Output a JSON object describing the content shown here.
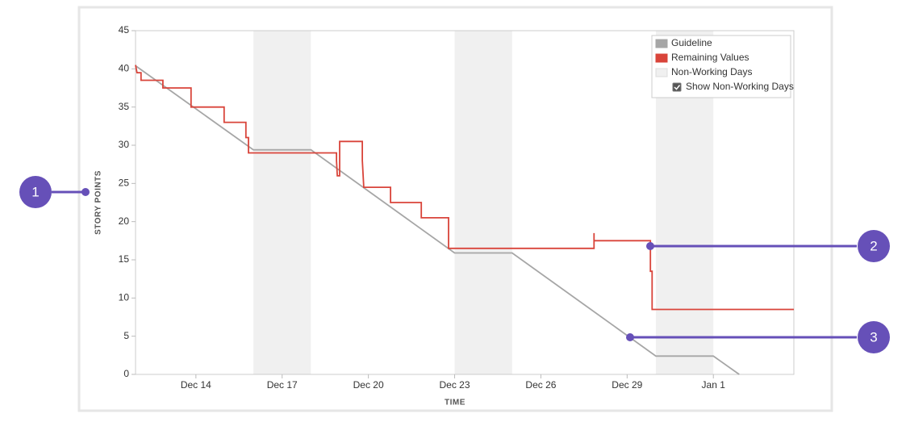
{
  "chart_data": {
    "type": "line",
    "x_label": "TIME",
    "y_label": "STORY POINTS",
    "xlim": [
      11.9,
      34.8
    ],
    "xticks": [
      {
        "value": 14,
        "label": "Dec 14"
      },
      {
        "value": 17,
        "label": "Dec 17"
      },
      {
        "value": 20,
        "label": "Dec 20"
      },
      {
        "value": 23,
        "label": "Dec 23"
      },
      {
        "value": 26,
        "label": "Dec 26"
      },
      {
        "value": 29,
        "label": "Dec 29"
      },
      {
        "value": 32,
        "label": "Jan 1"
      }
    ],
    "ylim": [
      0,
      45
    ],
    "yticks": [
      0,
      5,
      10,
      15,
      20,
      25,
      30,
      35,
      40,
      45
    ],
    "legend": "top-right",
    "shaded_regions": {
      "name": "Non-Working Days",
      "color": "#f0f0f0",
      "ranges": [
        [
          16,
          18
        ],
        [
          23,
          25
        ],
        [
          30,
          32
        ]
      ]
    },
    "checkbox_label": "Show Non-Working Days",
    "checked": true,
    "series": [
      {
        "name": "Guideline",
        "color": "#a6a6a6",
        "x": [
          11.9,
          16,
          18,
          23,
          25,
          30,
          32,
          32.9
        ],
        "values": [
          40.4,
          29.4,
          29.4,
          15.9,
          15.9,
          2.4,
          2.4,
          0
        ]
      },
      {
        "name": "Remaining Values",
        "color": "#d9443a",
        "x": [
          11.9,
          11.95,
          12.09,
          12.09,
          12.85,
          12.85,
          13.83,
          13.83,
          14.98,
          14.98,
          15.74,
          15.74,
          15.83,
          15.83,
          18.89,
          18.89,
          18.92,
          19.0,
          19.0,
          19.79,
          19.79,
          19.84,
          20.77,
          20.77,
          21.84,
          21.84,
          22.79,
          22.79,
          27.85,
          27.85,
          27.85,
          29.81,
          29.81,
          29.87,
          29.87,
          34.8
        ],
        "values": [
          40.5,
          39.5,
          39.5,
          38.5,
          38.5,
          37.5,
          37.5,
          35,
          35,
          33,
          33,
          31,
          31,
          29,
          29,
          28,
          26,
          26,
          30.5,
          30.5,
          28,
          24.5,
          24.5,
          22.5,
          22.5,
          20.5,
          20.5,
          16.5,
          16.5,
          18.5,
          17.5,
          17.5,
          13.5,
          13.5,
          8.5,
          8.5
        ]
      }
    ],
    "annotations": [
      "1",
      "2",
      "3"
    ]
  }
}
